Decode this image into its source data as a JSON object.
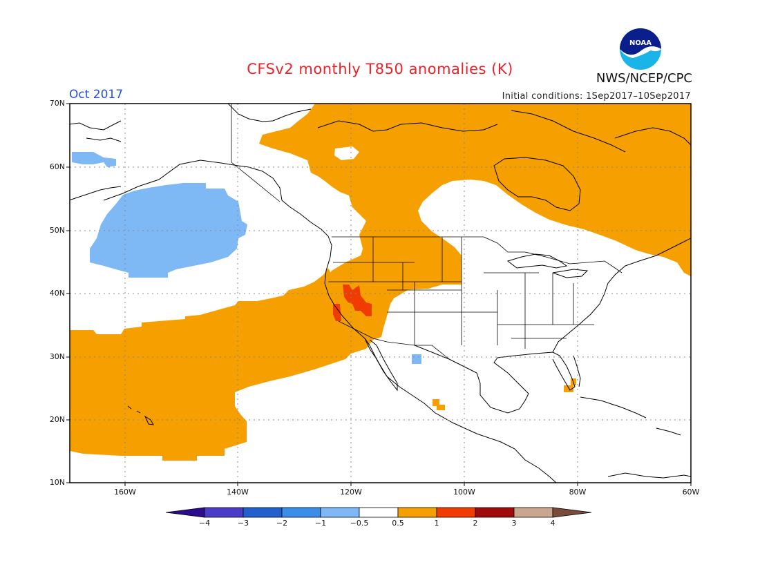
{
  "title": "CFSv2 monthly T850 anomalies (K)",
  "agency": "NWS/NCEP/CPC",
  "logo_text": "NOAA",
  "month": "Oct 2017",
  "initial_conditions": "Initial conditions: 1Sep2017–10Sep2017",
  "lat_labels": [
    "70N",
    "60N",
    "50N",
    "40N",
    "30N",
    "20N",
    "10N"
  ],
  "lon_labels": [
    "160W",
    "140W",
    "120W",
    "100W",
    "80W",
    "60W"
  ],
  "colorbar": {
    "labels": [
      "−4",
      "−3",
      "−2",
      "−1",
      "−0.5",
      "0.5",
      "1",
      "2",
      "3",
      "4"
    ],
    "colors": [
      "#2e0a8e",
      "#4a3cc8",
      "#2360cf",
      "#3a8ee8",
      "#7fb9f5",
      "#ffffff",
      "#f5a000",
      "#f03c00",
      "#a00a0a",
      "#c9a690",
      "#7a4a3a"
    ]
  },
  "colors": {
    "warm_0p5_1": "#f5a000",
    "warm_1_2": "#f03c00",
    "cool_m1_m0p5": "#7fb9f5",
    "title": "#e8232a",
    "month": "#2450d8"
  }
}
